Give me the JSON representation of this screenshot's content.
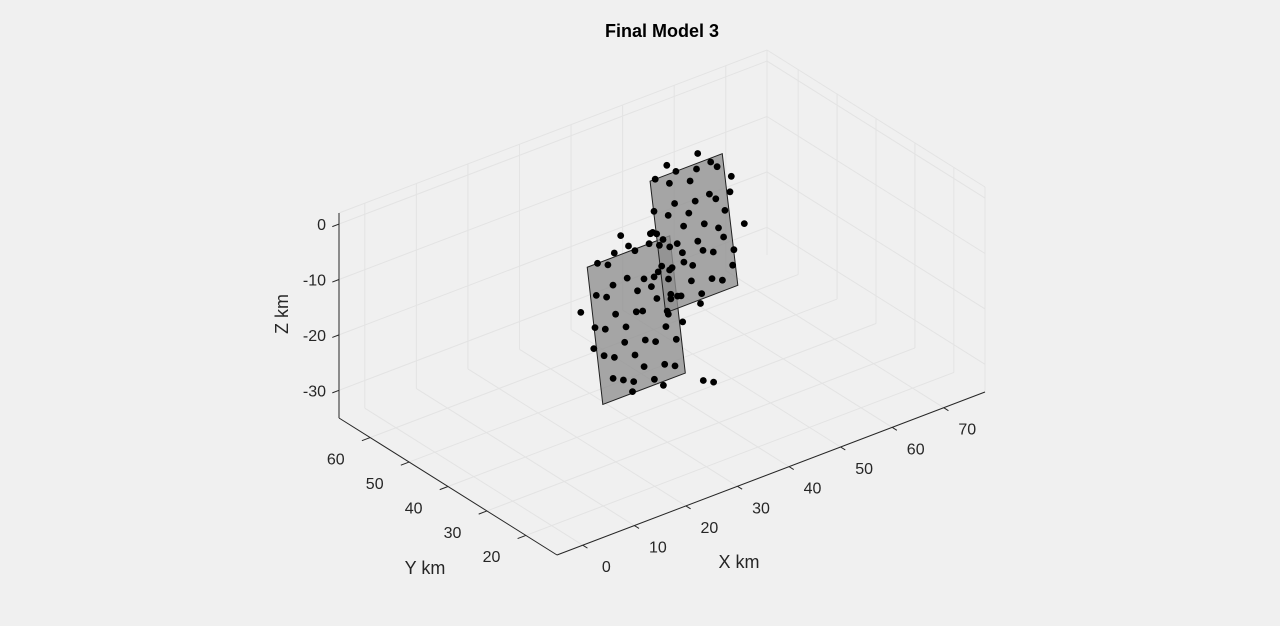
{
  "chart_data": {
    "type": "scatter3d",
    "title": "Final Model 3",
    "xlabel": "X km",
    "ylabel": "Y km",
    "zlabel": "Z km",
    "xlim": [
      -5,
      78
    ],
    "ylim": [
      12,
      68
    ],
    "zlim": [
      -35,
      2
    ],
    "xticks": [
      0,
      10,
      20,
      30,
      40,
      50,
      60,
      70
    ],
    "yticks": [
      20,
      30,
      40,
      50,
      60
    ],
    "zticks": [
      0,
      -10,
      -20,
      -30
    ],
    "grid": true,
    "fault_planes": [
      {
        "name": "",
        "corners": [
          [
            22,
            40,
            -5
          ],
          [
            38,
            40,
            -5
          ],
          [
            38,
            36,
            -28
          ],
          [
            22,
            36,
            -28
          ]
        ],
        "color": "#909090"
      },
      {
        "name": "",
        "corners": [
          [
            44,
            53,
            -3
          ],
          [
            58,
            53,
            -3
          ],
          [
            58,
            49,
            -25
          ],
          [
            44,
            49,
            -25
          ]
        ],
        "color": "#909090"
      }
    ],
    "series": [
      {
        "name": "",
        "color": "#000000",
        "points": [
          [
            24,
            40,
            -5
          ],
          [
            26,
            40,
            -6
          ],
          [
            28,
            41,
            -5
          ],
          [
            30,
            40,
            -4
          ],
          [
            32,
            41,
            -6
          ],
          [
            34,
            40,
            -5
          ],
          [
            36,
            40,
            -6
          ],
          [
            38,
            40,
            -7
          ],
          [
            23,
            39,
            -10
          ],
          [
            25,
            39,
            -11
          ],
          [
            27,
            40,
            -10
          ],
          [
            29,
            39,
            -9
          ],
          [
            31,
            39,
            -12
          ],
          [
            33,
            40,
            -11
          ],
          [
            35,
            39,
            -10
          ],
          [
            37,
            39,
            -12
          ],
          [
            22,
            38,
            -15
          ],
          [
            24,
            38,
            -16
          ],
          [
            26,
            38,
            -14
          ],
          [
            28,
            38,
            -17
          ],
          [
            30,
            38,
            -15
          ],
          [
            32,
            39,
            -16
          ],
          [
            34,
            38,
            -14
          ],
          [
            36,
            38,
            -17
          ],
          [
            38,
            38,
            -15
          ],
          [
            23,
            37,
            -20
          ],
          [
            25,
            37,
            -21
          ],
          [
            27,
            37,
            -19
          ],
          [
            29,
            37,
            -22
          ],
          [
            31,
            37,
            -20
          ],
          [
            33,
            37,
            -21
          ],
          [
            35,
            37,
            -19
          ],
          [
            37,
            37,
            -22
          ],
          [
            24,
            36,
            -24
          ],
          [
            26,
            36,
            -25
          ],
          [
            28,
            36,
            -26
          ],
          [
            30,
            36,
            -24
          ],
          [
            32,
            36,
            -27
          ],
          [
            34,
            36,
            -25
          ],
          [
            36,
            36,
            -26
          ],
          [
            21,
            37,
            -18
          ],
          [
            39,
            38,
            -20
          ],
          [
            20,
            39,
            -12
          ],
          [
            40,
            39,
            -10
          ],
          [
            30,
            42,
            -3
          ],
          [
            35,
            41,
            -4
          ],
          [
            27,
            35,
            -27
          ],
          [
            33,
            35,
            -28
          ],
          [
            45,
            53,
            -3
          ],
          [
            47,
            52,
            -4
          ],
          [
            49,
            53,
            -3
          ],
          [
            51,
            52,
            -5
          ],
          [
            53,
            53,
            -4
          ],
          [
            55,
            52,
            -3
          ],
          [
            57,
            53,
            -5
          ],
          [
            44,
            52,
            -8
          ],
          [
            46,
            51,
            -9
          ],
          [
            48,
            52,
            -8
          ],
          [
            50,
            51,
            -10
          ],
          [
            52,
            52,
            -9
          ],
          [
            54,
            51,
            -8
          ],
          [
            56,
            52,
            -10
          ],
          [
            58,
            51,
            -9
          ],
          [
            45,
            51,
            -13
          ],
          [
            47,
            50,
            -14
          ],
          [
            49,
            51,
            -12
          ],
          [
            51,
            50,
            -15
          ],
          [
            53,
            51,
            -13
          ],
          [
            55,
            50,
            -14
          ],
          [
            57,
            51,
            -12
          ],
          [
            44,
            50,
            -17
          ],
          [
            46,
            50,
            -18
          ],
          [
            48,
            50,
            -16
          ],
          [
            50,
            50,
            -19
          ],
          [
            52,
            50,
            -17
          ],
          [
            54,
            50,
            -18
          ],
          [
            56,
            50,
            -16
          ],
          [
            58,
            50,
            -19
          ],
          [
            45,
            49,
            -22
          ],
          [
            47,
            49,
            -23
          ],
          [
            49,
            49,
            -21
          ],
          [
            51,
            49,
            -24
          ],
          [
            53,
            49,
            -22
          ],
          [
            55,
            49,
            -23
          ],
          [
            57,
            49,
            -21
          ],
          [
            43,
            51,
            -11
          ],
          [
            59,
            52,
            -7
          ],
          [
            42,
            50,
            -20
          ],
          [
            60,
            50,
            -15
          ],
          [
            48,
            54,
            -2
          ],
          [
            54,
            54,
            -2
          ],
          [
            50,
            48,
            -25
          ],
          [
            41,
            44,
            -14
          ],
          [
            42,
            45,
            -20
          ],
          [
            40,
            46,
            -8
          ],
          [
            43,
            47,
            -24
          ],
          [
            41,
            48,
            -17
          ],
          [
            43,
            38,
            -32
          ],
          [
            45,
            38,
            -33
          ]
        ]
      }
    ]
  }
}
